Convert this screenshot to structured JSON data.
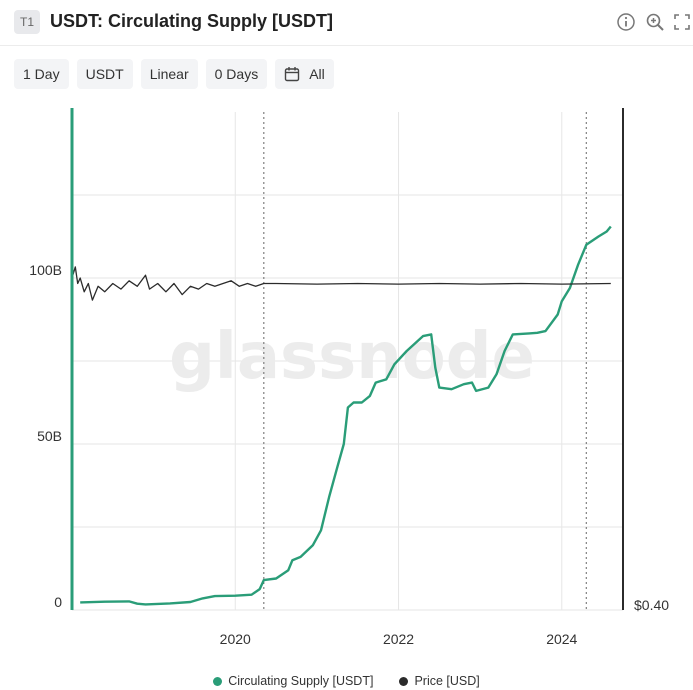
{
  "header": {
    "badge": "T1",
    "title": "USDT: Circulating Supply [USDT]",
    "icons": [
      "info-icon",
      "zoom-icon",
      "expand-icon"
    ]
  },
  "toolbar": {
    "resolution": "1 Day",
    "currency": "USDT",
    "scale": "Linear",
    "sma": "0 Days",
    "range": "All",
    "range_icon": "calendar-icon"
  },
  "watermark": "glassnode",
  "colors": {
    "supply": "#2a9d78",
    "price": "#2b2b2b",
    "grid": "#e6e6e6",
    "axis": "#2a9d78"
  },
  "chart_data": {
    "type": "line",
    "title": "USDT: Circulating Supply [USDT]",
    "x_range": [
      2018.0,
      2024.75
    ],
    "x_ticks": [
      {
        "value": 2020,
        "label": "2020"
      },
      {
        "value": 2022,
        "label": "2022"
      },
      {
        "value": 2024,
        "label": "2024"
      }
    ],
    "y_left": {
      "range": [
        0,
        150
      ],
      "ticks": [
        {
          "value": 0,
          "label": "0"
        },
        {
          "value": 50,
          "label": "50B"
        },
        {
          "value": 100,
          "label": "100B"
        }
      ],
      "grid_values": [
        0,
        25,
        50,
        75,
        100,
        125
      ]
    },
    "y_right": {
      "range": [
        0.4,
        1.3
      ],
      "ticks": [
        {
          "value": 0.4,
          "label": "$0.40"
        }
      ]
    },
    "vertical_markers": [
      2020.35,
      2024.3
    ],
    "series": [
      {
        "name": "Circulating Supply [USDT]",
        "axis": "left",
        "points": [
          [
            2018.1,
            2.3
          ],
          [
            2018.4,
            2.5
          ],
          [
            2018.7,
            2.6
          ],
          [
            2018.8,
            1.9
          ],
          [
            2018.9,
            1.7
          ],
          [
            2019.2,
            2.0
          ],
          [
            2019.45,
            2.4
          ],
          [
            2019.6,
            3.5
          ],
          [
            2019.75,
            4.2
          ],
          [
            2020.0,
            4.3
          ],
          [
            2020.2,
            4.6
          ],
          [
            2020.3,
            6.3
          ],
          [
            2020.35,
            9.0
          ],
          [
            2020.5,
            9.5
          ],
          [
            2020.65,
            12.0
          ],
          [
            2020.7,
            15.0
          ],
          [
            2020.8,
            16.0
          ],
          [
            2020.95,
            19.5
          ],
          [
            2021.05,
            24.0
          ],
          [
            2021.15,
            34.0
          ],
          [
            2021.25,
            43.0
          ],
          [
            2021.33,
            50.0
          ],
          [
            2021.38,
            61.0
          ],
          [
            2021.45,
            62.5
          ],
          [
            2021.55,
            62.5
          ],
          [
            2021.65,
            64.5
          ],
          [
            2021.72,
            68.5
          ],
          [
            2021.85,
            69.5
          ],
          [
            2021.95,
            74.0
          ],
          [
            2022.1,
            78.0
          ],
          [
            2022.3,
            82.5
          ],
          [
            2022.4,
            83.0
          ],
          [
            2022.45,
            73.0
          ],
          [
            2022.5,
            67.0
          ],
          [
            2022.65,
            66.5
          ],
          [
            2022.8,
            68.0
          ],
          [
            2022.9,
            68.5
          ],
          [
            2022.95,
            66.0
          ],
          [
            2023.1,
            67.0
          ],
          [
            2023.2,
            71.0
          ],
          [
            2023.3,
            78.0
          ],
          [
            2023.4,
            83.0
          ],
          [
            2023.6,
            83.3
          ],
          [
            2023.7,
            83.5
          ],
          [
            2023.8,
            84.0
          ],
          [
            2023.95,
            89.0
          ],
          [
            2024.0,
            93.0
          ],
          [
            2024.1,
            97.0
          ],
          [
            2024.2,
            104.0
          ],
          [
            2024.3,
            110.0
          ],
          [
            2024.45,
            112.5
          ],
          [
            2024.55,
            114.0
          ],
          [
            2024.6,
            115.5
          ]
        ]
      },
      {
        "name": "Price [USD]",
        "axis": "right",
        "points": [
          [
            2018.0,
            1.0
          ],
          [
            2018.04,
            1.02
          ],
          [
            2018.07,
            0.99
          ],
          [
            2018.1,
            1.0
          ],
          [
            2018.15,
            0.975
          ],
          [
            2018.2,
            0.99
          ],
          [
            2018.25,
            0.96
          ],
          [
            2018.32,
            0.985
          ],
          [
            2018.4,
            0.975
          ],
          [
            2018.5,
            0.99
          ],
          [
            2018.6,
            0.98
          ],
          [
            2018.7,
            0.995
          ],
          [
            2018.8,
            0.985
          ],
          [
            2018.9,
            1.005
          ],
          [
            2018.95,
            0.98
          ],
          [
            2019.05,
            0.99
          ],
          [
            2019.15,
            0.975
          ],
          [
            2019.25,
            0.99
          ],
          [
            2019.35,
            0.97
          ],
          [
            2019.45,
            0.985
          ],
          [
            2019.55,
            0.98
          ],
          [
            2019.65,
            0.99
          ],
          [
            2019.75,
            0.985
          ],
          [
            2019.85,
            0.99
          ],
          [
            2019.95,
            0.995
          ],
          [
            2020.05,
            0.985
          ],
          [
            2020.15,
            0.99
          ],
          [
            2020.25,
            0.985
          ],
          [
            2020.35,
            0.99
          ],
          [
            2020.5,
            0.99
          ],
          [
            2021.0,
            0.989
          ],
          [
            2021.5,
            0.99
          ],
          [
            2022.0,
            0.989
          ],
          [
            2022.5,
            0.99
          ],
          [
            2023.0,
            0.989
          ],
          [
            2023.5,
            0.99
          ],
          [
            2024.0,
            0.989
          ],
          [
            2024.6,
            0.99
          ]
        ]
      }
    ]
  },
  "legend": [
    {
      "label": "Circulating Supply [USDT]",
      "color": "#2a9d78"
    },
    {
      "label": "Price [USD]",
      "color": "#2b2b2b"
    }
  ]
}
